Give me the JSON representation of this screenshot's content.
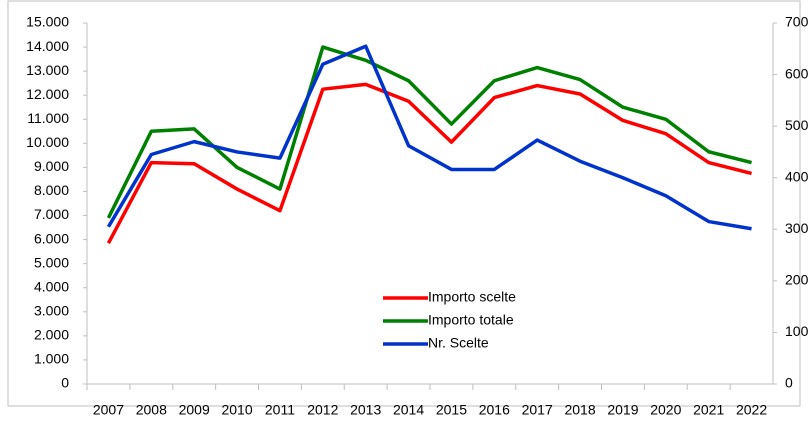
{
  "chart_data": {
    "type": "line",
    "categories": [
      "2007",
      "2008",
      "2009",
      "2010",
      "2011",
      "2012",
      "2013",
      "2014",
      "2015",
      "2016",
      "2017",
      "2018",
      "2019",
      "2020",
      "2021",
      "2022"
    ],
    "series": [
      {
        "name": "Importo scelte",
        "color": "#ff0000",
        "values": [
          5850,
          9200,
          9150,
          8100,
          7200,
          12250,
          12450,
          11750,
          10050,
          11900,
          12400,
          12050,
          10950,
          10400,
          9200,
          8750
        ]
      },
      {
        "name": "Importo totale",
        "color": "#008000",
        "values": [
          6900,
          10500,
          10600,
          9000,
          8100,
          14000,
          13450,
          12600,
          10800,
          12600,
          13150,
          12650,
          11500,
          11000,
          9650,
          9200
        ]
      },
      {
        "name": "Nr. Scelte",
        "color": "#0033cc",
        "axis": "y2",
        "values": [
          305,
          445,
          470,
          450,
          438,
          620,
          655,
          462,
          416,
          416,
          473,
          432,
          400,
          365,
          315,
          301
        ]
      }
    ],
    "ylim": [
      0,
      15000
    ],
    "yticks": [
      0,
      {
        "value": 1000,
        "label": "1.000"
      },
      {
        "value": 2000,
        "label": "2.000"
      },
      {
        "value": 3000,
        "label": "3.000"
      },
      {
        "value": 4000,
        "label": "4.000"
      },
      {
        "value": 5000,
        "label": "5.000"
      },
      {
        "value": 6000,
        "label": "6.000"
      },
      {
        "value": 7000,
        "label": "7.000"
      },
      {
        "value": 8000,
        "label": "8.000"
      },
      {
        "value": 9000,
        "label": "9.000"
      },
      {
        "value": 10000,
        "label": "10.000"
      },
      {
        "value": 11000,
        "label": "11.000"
      },
      {
        "value": 12000,
        "label": "12.000"
      },
      {
        "value": 13000,
        "label": "13.000"
      },
      {
        "value": 14000,
        "label": "14.000"
      },
      {
        "value": 15000,
        "label": "15.000"
      }
    ],
    "y2lim": [
      0,
      700
    ],
    "y2ticks": [
      0,
      100,
      200,
      300,
      400,
      500,
      600,
      700
    ],
    "grid": false
  }
}
